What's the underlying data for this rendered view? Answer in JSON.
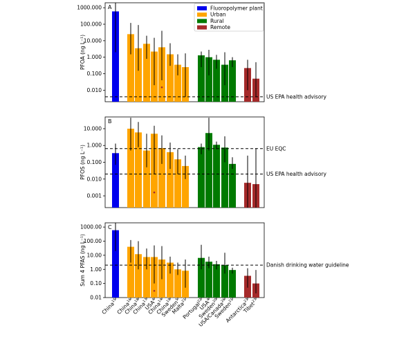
{
  "colors": {
    "Fluoropolymer plant": "#0000ee",
    "Urban": "#ffa500",
    "Rural": "#007a00",
    "Remote": "#a52a2a"
  },
  "legend": {
    "placement": "top-right",
    "entries": [
      "Fluoropolymer plant",
      "Urban",
      "Rural",
      "Remote"
    ]
  },
  "chart_data": [
    {
      "type": "bar",
      "panel_label": "A",
      "ylabel": "PFOA (ng L⁻¹)",
      "yscale": "log",
      "ylim": [
        0.002,
        2000
      ],
      "yticks": [
        0.01,
        1,
        100,
        1000
      ],
      "ytick_labels": [
        "0.010",
        "1.000",
        "100.000",
        "1000.000"
      ],
      "ytick_values": [
        0.01,
        0.1,
        1,
        10,
        100,
        1000
      ],
      "ytick_texts": [
        "0.010",
        "0.100",
        "1.000",
        "10.000",
        "100.000",
        "1000.000"
      ],
      "hlines": [
        {
          "value": 0.004,
          "label": "US EPA health advisory"
        }
      ],
      "bars": [
        {
          "value": 600,
          "low": 2,
          "high": 2600,
          "group": "Fluoropolymer plant"
        },
        {
          "value": 25,
          "low": 1.5,
          "high": 120,
          "group": "Urban"
        },
        {
          "value": 3.5,
          "low": 0.15,
          "high": 90,
          "group": "Urban"
        },
        {
          "value": 6.5,
          "low": 0.8,
          "high": 20,
          "group": "Urban"
        },
        {
          "value": 2.2,
          "low": 0.02,
          "high": 15,
          "group": "Urban"
        },
        {
          "value": 4,
          "low": 0.04,
          "high": 40,
          "group": "Urban",
          "marker": 0.015
        },
        {
          "value": 1.5,
          "low": 0.3,
          "high": 7,
          "group": "Urban"
        },
        {
          "value": 0.35,
          "low": 0.08,
          "high": 1.5,
          "group": "Urban"
        },
        {
          "value": 0.25,
          "low": 0.004,
          "high": 1.7,
          "group": "Urban"
        },
        {
          "value": 1.3,
          "low": 0.25,
          "high": 2.2,
          "group": "Rural"
        },
        {
          "value": 1.0,
          "low": 0.08,
          "high": 2.8,
          "group": "Rural"
        },
        {
          "value": 0.7,
          "low": 0.2,
          "high": 1.4,
          "group": "Rural"
        },
        {
          "value": 0.35,
          "low": 0.02,
          "high": 2.0,
          "group": "Rural"
        },
        {
          "value": 0.65,
          "low": 0.25,
          "high": 1.0,
          "group": "Rural"
        },
        {
          "value": 0.22,
          "low": 0.01,
          "high": 0.7,
          "group": "Remote"
        },
        {
          "value": 0.05,
          "low": 0.004,
          "high": 0.5,
          "group": "Remote"
        }
      ]
    },
    {
      "type": "bar",
      "panel_label": "B",
      "ylabel": "PFOS (ng L⁻¹)",
      "yscale": "log",
      "ylim": [
        0.0002,
        50
      ],
      "ytick_values": [
        0.001,
        0.01,
        0.1,
        1,
        10
      ],
      "ytick_texts": [
        "0.001",
        "0.010",
        "0.100",
        "1.000",
        "10.000"
      ],
      "hlines": [
        {
          "value": 0.65,
          "label": "EU EQC"
        },
        {
          "value": 0.02,
          "label": "US EPA health advisory"
        }
      ],
      "bars": [
        {
          "value": 0.35,
          "low": 0.07,
          "high": 1.3,
          "group": "Fluoropolymer plant"
        },
        {
          "value": 10,
          "low": 0.5,
          "high": 45,
          "group": "Urban"
        },
        {
          "value": 6,
          "low": 0.8,
          "high": 25,
          "group": "Urban"
        },
        {
          "value": 0.5,
          "low": 0.05,
          "high": 5,
          "group": "Urban"
        },
        {
          "value": 5,
          "low": 0.02,
          "high": 15,
          "group": "Urban",
          "marker": 0.0016
        },
        {
          "value": 0.7,
          "low": 0.08,
          "high": 4,
          "group": "Urban"
        },
        {
          "value": 0.4,
          "low": 0.04,
          "high": 1.5,
          "group": "Urban"
        },
        {
          "value": 0.15,
          "low": 0.02,
          "high": 0.6,
          "group": "Urban"
        },
        {
          "value": 0.06,
          "low": 0.01,
          "high": 0.25,
          "group": "Urban"
        },
        {
          "value": 0.8,
          "low": 0.3,
          "high": 1.3,
          "group": "Rural"
        },
        {
          "value": 5.5,
          "low": 0.5,
          "high": 45,
          "group": "Rural"
        },
        {
          "value": 1.1,
          "low": 0.6,
          "high": 1.7,
          "group": "Rural"
        },
        {
          "value": 0.75,
          "low": 0.1,
          "high": 3.5,
          "group": "Rural"
        },
        {
          "value": 0.08,
          "low": 0.04,
          "high": 0.2,
          "group": "Rural"
        },
        {
          "value": 0.006,
          "low": 0.0002,
          "high": 0.25,
          "group": "Remote"
        },
        {
          "value": 0.005,
          "low": 0.0002,
          "high": 0.7,
          "group": "Remote"
        }
      ]
    },
    {
      "type": "bar",
      "panel_label": "C",
      "ylabel": "Sum 4 PFAS (ng L⁻¹)",
      "yscale": "log",
      "ylim": [
        0.01,
        2000
      ],
      "ytick_values": [
        0.01,
        0.1,
        1,
        10,
        100,
        1000
      ],
      "ytick_texts": [
        "0.01",
        "0.10",
        "1.00",
        "10.00",
        "100.00",
        "1000.00"
      ],
      "hlines": [
        {
          "value": 2,
          "label": "Danish drinking water guideline"
        }
      ],
      "xtick_labels": [
        {
          "text": "China",
          "sup": "15"
        },
        {
          "text": "China",
          "sup": "16"
        },
        {
          "text": "China",
          "sup": "18"
        },
        {
          "text": "China",
          "sup": "17"
        },
        {
          "text": "USA",
          "sup": "4"
        },
        {
          "text": "China",
          "sup": "14"
        },
        {
          "text": "China",
          "sup": "19"
        },
        {
          "text": "Sweden",
          "sup": "5"
        },
        {
          "text": "Malta",
          "sup": "21"
        },
        {
          "text": "Portugal",
          "sup": "22"
        },
        {
          "text": "USA",
          "sup": "4"
        },
        {
          "text": "Sweden",
          "sup": "20"
        },
        {
          "text": "USA/Canada",
          "sup": "26"
        },
        {
          "text": "Sweden",
          "sup": "21"
        },
        {
          "text": "Antarctica",
          "sup": "23"
        },
        {
          "text": "Tibet",
          "sup": "27"
        }
      ],
      "bars": [
        {
          "value": 600,
          "low": 20,
          "high": 2600,
          "group": "Fluoropolymer plant"
        },
        {
          "value": 40,
          "low": 3,
          "high": 120,
          "group": "Urban"
        },
        {
          "value": 12,
          "low": 1,
          "high": 100,
          "group": "Urban"
        },
        {
          "value": 7.5,
          "low": 1,
          "high": 30,
          "group": "Urban"
        },
        {
          "value": 7.5,
          "low": 0.1,
          "high": 50,
          "group": "Urban",
          "marker": 0.03
        },
        {
          "value": 5,
          "low": 0.2,
          "high": 45,
          "group": "Urban"
        },
        {
          "value": 3,
          "low": 0.5,
          "high": 8,
          "group": "Urban"
        },
        {
          "value": 1,
          "low": 0.4,
          "high": 3,
          "group": "Urban"
        },
        {
          "value": 0.8,
          "low": 0.05,
          "high": 5,
          "group": "Urban"
        },
        {
          "value": 6.5,
          "low": 1,
          "high": 55,
          "group": "Rural"
        },
        {
          "value": 3.5,
          "low": 1.2,
          "high": 8,
          "group": "Rural"
        },
        {
          "value": 2.3,
          "low": 1,
          "high": 4,
          "group": "Rural"
        },
        {
          "value": 2,
          "low": 0.5,
          "high": 15,
          "group": "Rural"
        },
        {
          "value": 0.9,
          "low": 0.5,
          "high": 1.3,
          "group": "Rural"
        },
        {
          "value": 0.35,
          "low": 0.05,
          "high": 1.2,
          "group": "Remote"
        },
        {
          "value": 0.1,
          "low": 0.02,
          "high": 0.9,
          "group": "Remote"
        }
      ]
    }
  ]
}
